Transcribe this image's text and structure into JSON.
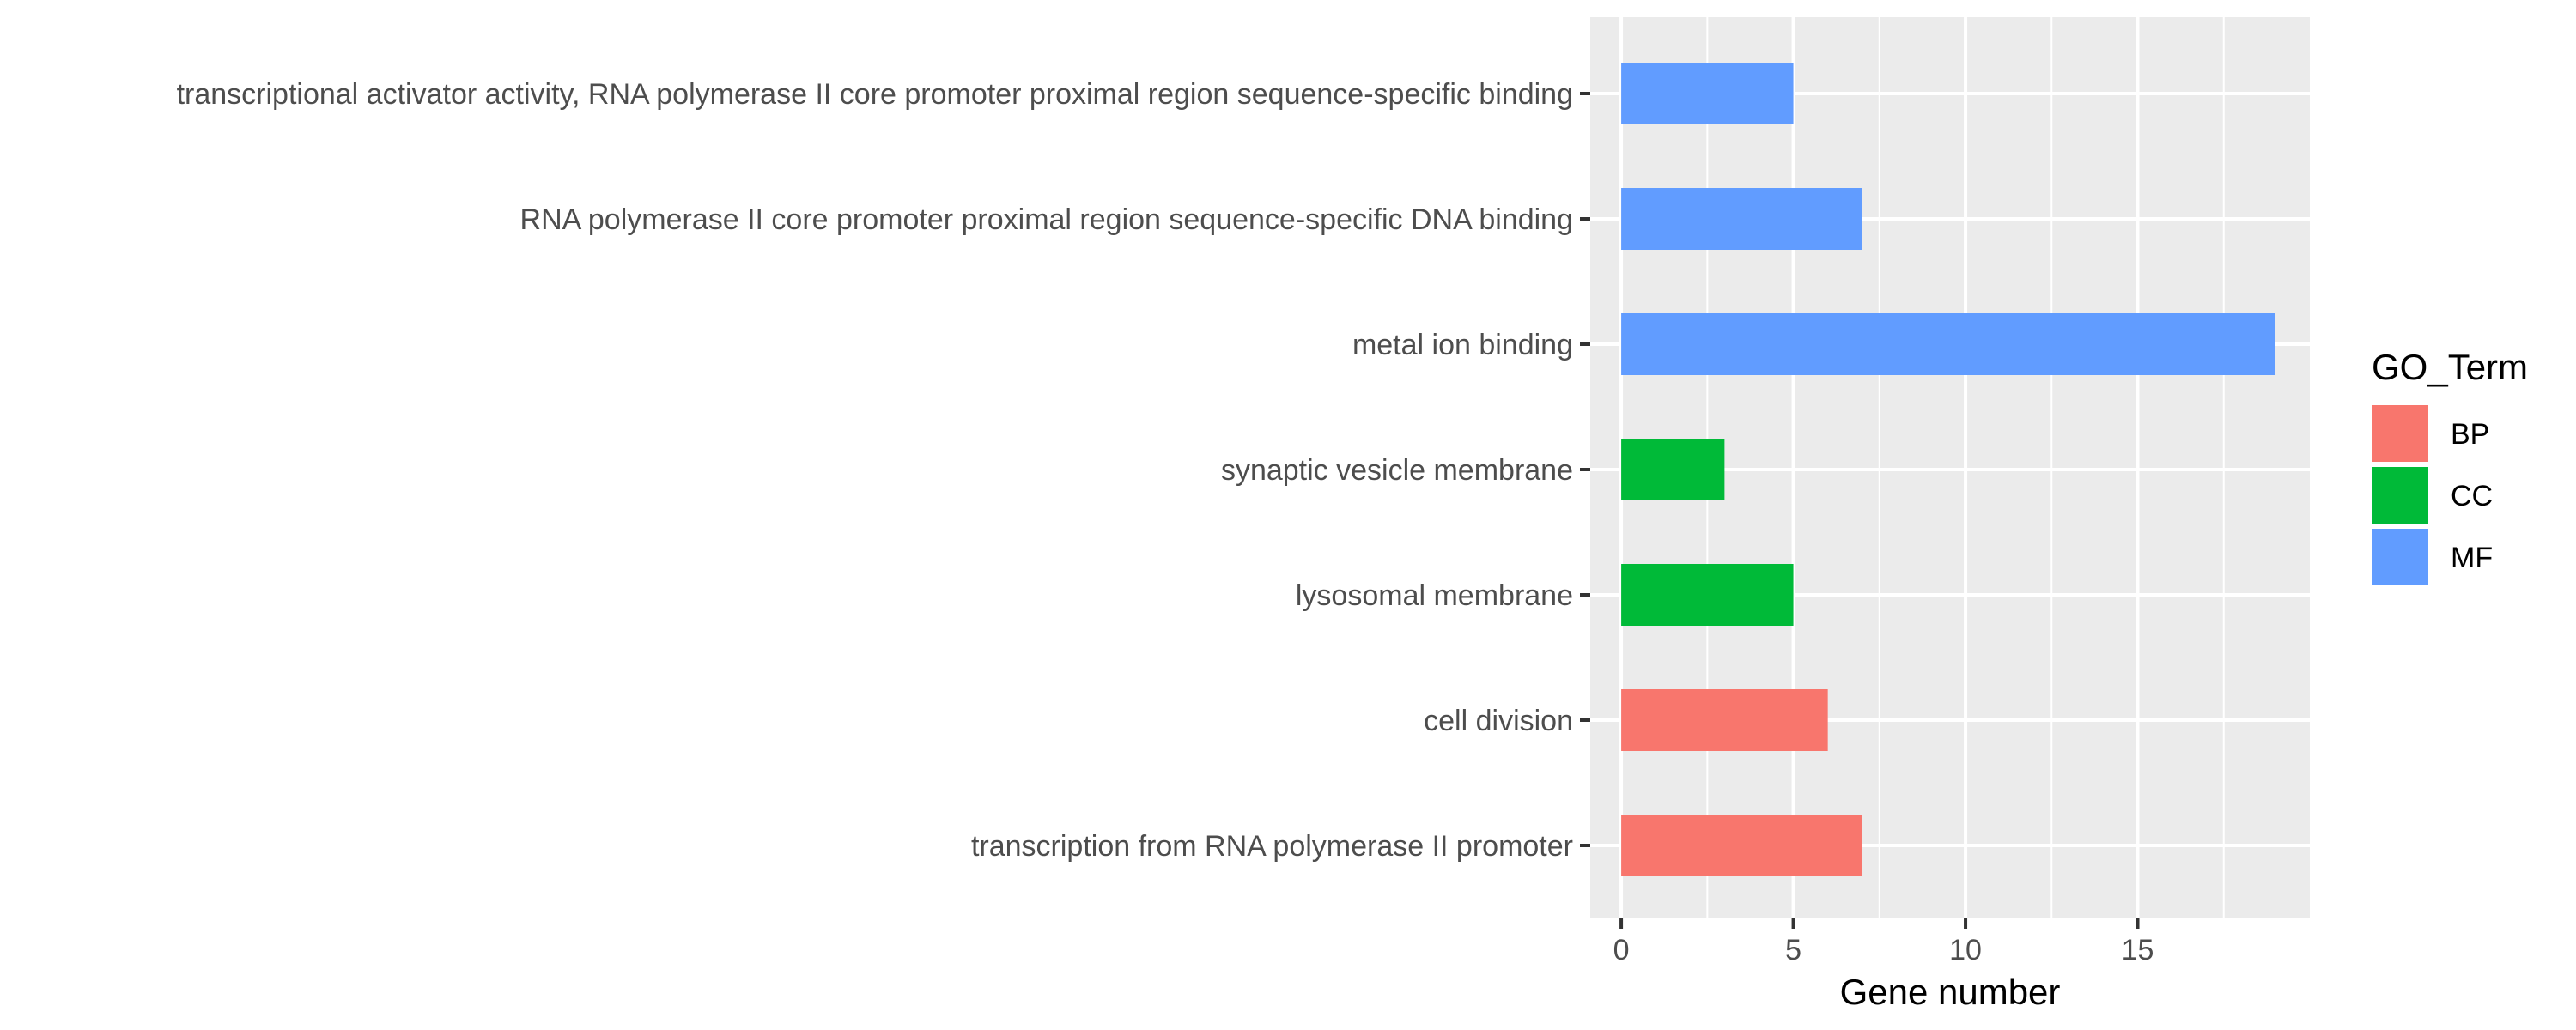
{
  "chart_data": {
    "type": "bar",
    "orientation": "horizontal",
    "categories": [
      "transcription from RNA polymerase II promoter",
      "cell division",
      "lysosomal membrane",
      "synaptic vesicle membrane",
      "metal ion binding",
      "RNA polymerase II core promoter proximal region sequence-specific DNA binding",
      "transcriptional activator activity, RNA polymerase II core promoter proximal region sequence-specific binding"
    ],
    "values": [
      7,
      6,
      5,
      3,
      19,
      7,
      5
    ],
    "groups": [
      "BP",
      "BP",
      "CC",
      "CC",
      "MF",
      "MF",
      "MF"
    ],
    "title": "",
    "xlabel": "Gene number",
    "ylabel": "",
    "xlim": [
      0,
      20
    ],
    "xticks": [
      0,
      5,
      10,
      15
    ],
    "grid": true,
    "legend": {
      "title": "GO_Term",
      "position": "right",
      "items": [
        {
          "label": "BP",
          "color": "#F8766D"
        },
        {
          "label": "CC",
          "color": "#00BA38"
        },
        {
          "label": "MF",
          "color": "#619CFF"
        }
      ]
    },
    "panel_background": "#EBEBEB",
    "grid_color": "#FFFFFF"
  }
}
